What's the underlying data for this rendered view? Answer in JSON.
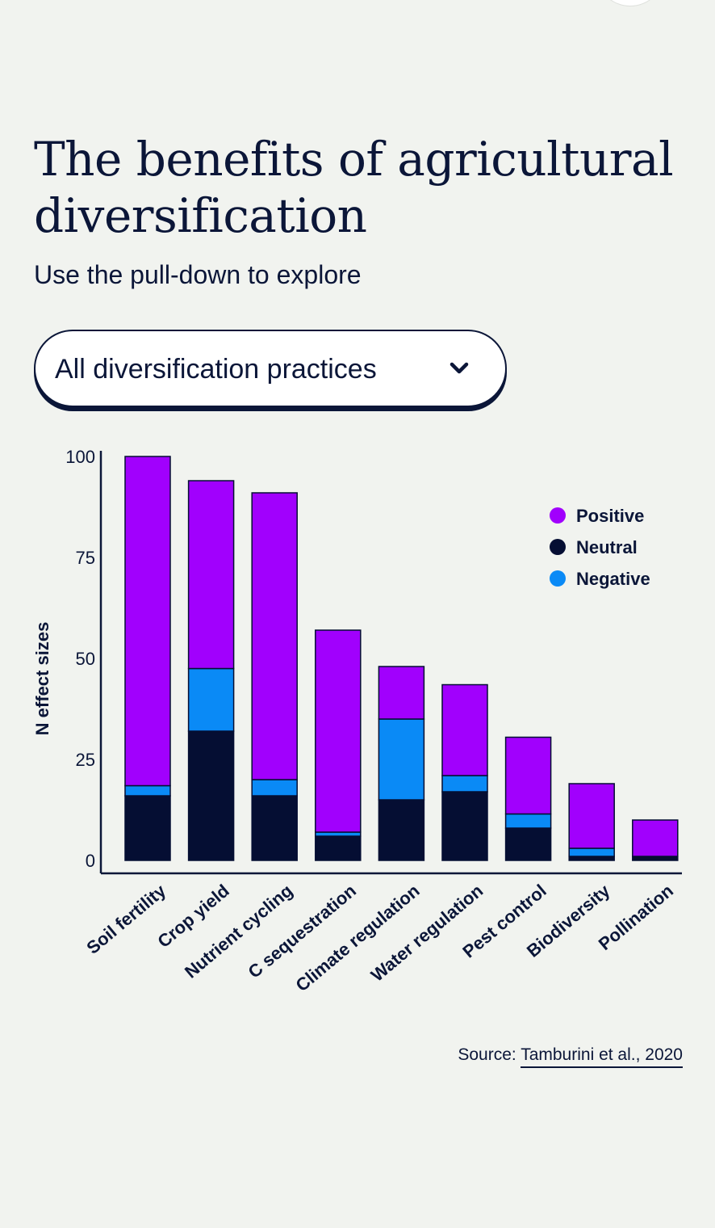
{
  "page": {
    "title": "The benefits of agricultural diversification",
    "subtitle": "Use the pull-down to explore"
  },
  "dropdown": {
    "selected": "All diversification practices",
    "icon": "chevron-down-icon"
  },
  "source": {
    "prefix": "Source: ",
    "link_text": "Tamburini et al., 2020"
  },
  "chart_data": {
    "type": "bar",
    "stacked": true,
    "title": "",
    "xlabel": "",
    "ylabel": "N effect sizes",
    "ylim": [
      0,
      100
    ],
    "yticks": [
      "0",
      "25",
      "50",
      "75",
      "100"
    ],
    "grid": false,
    "legend_position": "top-right",
    "categories": [
      "Soil fertility",
      "Crop yield",
      "Nutrient cycling",
      "C sequestration",
      "Climate regulation",
      "Water regulation",
      "Pest control",
      "Biodiversity",
      "Pollination"
    ],
    "series": [
      {
        "name": "Neutral",
        "color": "#050e33",
        "values": [
          16,
          32,
          16,
          6,
          15,
          17,
          8,
          1,
          1
        ]
      },
      {
        "name": "Negative",
        "color": "#0a8af6",
        "values": [
          2.5,
          15.5,
          4,
          1,
          20,
          4,
          3.5,
          2,
          0
        ]
      },
      {
        "name": "Positive",
        "color": "#a100fd",
        "values": [
          81.5,
          46.5,
          71,
          50,
          13,
          22.5,
          19,
          16,
          9
        ]
      }
    ],
    "legend_order": [
      "Positive",
      "Neutral",
      "Negative"
    ]
  }
}
